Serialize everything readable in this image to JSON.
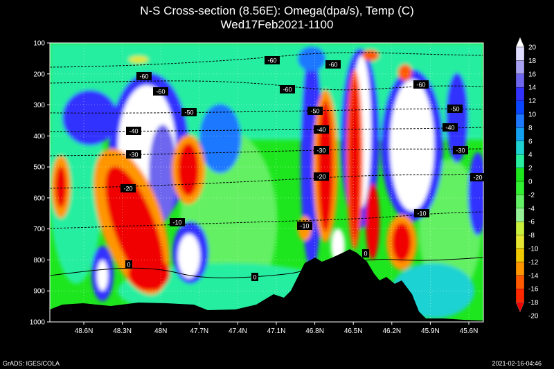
{
  "title": "N-S Cross-section (8.56E): Omega(dpa/s), Temp (C)",
  "subtitle": "Wed17Feb2021-1100",
  "footer_left": "GrADS: IGES/COLA",
  "footer_right": "2021-02-16-04:46",
  "chart_data": {
    "type": "heatmap",
    "x_tick_labels": [
      "48.6N",
      "48.3N",
      "48N",
      "47.7N",
      "47.4N",
      "47.1N",
      "46.8N",
      "46.5N",
      "46.2N",
      "45.9N",
      "45.6N"
    ],
    "y_tick_labels": [
      "100",
      "200",
      "300",
      "400",
      "500",
      "600",
      "700",
      "800",
      "900",
      "1000"
    ],
    "y_ticks": [
      100,
      200,
      300,
      400,
      500,
      600,
      700,
      800,
      900,
      1000
    ],
    "ylim": [
      100,
      1000
    ],
    "y_direction": "pressure increases downward",
    "colorbar_levels": [
      20,
      18,
      16,
      14,
      12,
      10,
      8,
      6,
      4,
      2,
      0,
      -2,
      -4,
      -6,
      -8,
      -10,
      -12,
      -14,
      -16,
      -18,
      -20
    ],
    "colorbar_colors": [
      "#ffffff",
      "#e0dcff",
      "#a8a0f0",
      "#6e66ee",
      "#3232ff",
      "#0a46ff",
      "#1e78ff",
      "#14a0f0",
      "#1ed2d2",
      "#28eea0",
      "#1ee61e",
      "#32f032",
      "#64f064",
      "#96f096",
      "#c8f03c",
      "#e6e632",
      "#f0c800",
      "#ff9600",
      "#ff5a00",
      "#ff2800",
      "#f00000"
    ],
    "temperature_contour_labels": [
      "-60",
      "-60",
      "-60",
      "-60",
      "-60",
      "-60",
      "-50",
      "-50",
      "-50",
      "-40",
      "-40",
      "-40",
      "-30",
      "-30",
      "-30",
      "-20",
      "-20",
      "-20",
      "-10",
      "-10",
      "-10",
      "0",
      "0",
      "0"
    ],
    "terrain": "filled black"
  }
}
